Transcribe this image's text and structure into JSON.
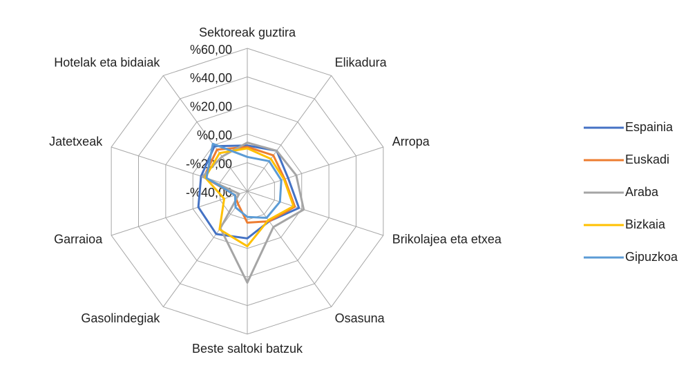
{
  "chart_data": {
    "type": "radar",
    "categories": [
      "Sektoreak guztira",
      "Elikadura",
      "Arropa",
      "Brikolajea eta etxea",
      "Osasuna",
      "Beste saltoki batzuk",
      "Gasolindegiak",
      "Garraioa",
      "Jatetxeak",
      "Hotelak eta bidaiak"
    ],
    "ylim": [
      -40,
      60
    ],
    "yticks": [
      {
        "value": -40,
        "label": "-%40,00"
      },
      {
        "value": -20,
        "label": "-%20,00"
      },
      {
        "value": 0,
        "label": "%0,00"
      },
      {
        "value": 20,
        "label": "%20,00"
      },
      {
        "value": 40,
        "label": "%40,00"
      },
      {
        "value": 60,
        "label": "%60,00"
      }
    ],
    "grid": true,
    "legend": "right",
    "series": [
      {
        "name": "Espainia",
        "color": "#4472c4",
        "values": [
          -8,
          -5,
          -10,
          -2,
          -14,
          -7,
          -3,
          -4,
          -6,
          -1
        ]
      },
      {
        "name": "Euskadi",
        "color": "#ed7d31",
        "values": [
          -9,
          -9,
          -12.5,
          -5,
          -14,
          -18,
          -29,
          -31,
          -8,
          -4
        ]
      },
      {
        "name": "Araba",
        "color": "#a5a5a5",
        "values": [
          -6,
          -5,
          -4,
          1.5,
          -9,
          24,
          -8,
          -34,
          -7,
          -10
        ]
      },
      {
        "name": "Bizkaia",
        "color": "#ffc000",
        "values": [
          -10,
          -12,
          -13,
          -6,
          -15,
          -1.5,
          -7,
          -23,
          -9,
          -7
        ]
      },
      {
        "name": "Gipuzkoa",
        "color": "#5b9bd5",
        "values": [
          -16,
          -14,
          -15,
          -16,
          -17,
          -22,
          -26,
          -31,
          -10,
          1
        ]
      }
    ]
  }
}
